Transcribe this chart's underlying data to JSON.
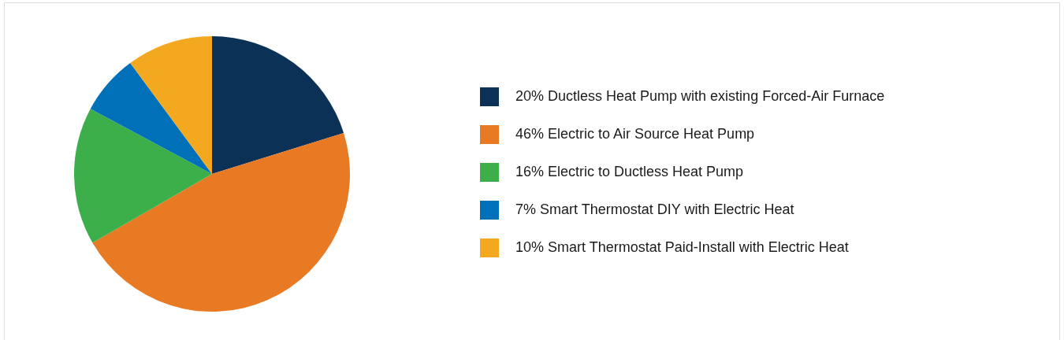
{
  "chart_data": {
    "type": "pie",
    "categories": [
      "Ductless Heat Pump with existing Forced-Air Furnace",
      "Electric to Air Source Heat Pump",
      "Electric to Ductless Heat Pump",
      "Smart Thermostat DIY with Electric Heat",
      "Smart Thermostat Paid-Install with Electric Heat"
    ],
    "values": [
      20,
      46,
      16,
      7,
      10
    ],
    "colors": [
      "#0b3256",
      "#e87a24",
      "#3caf4b",
      "#0070b8",
      "#f4a81f"
    ],
    "value_labels": [
      "20%",
      "46%",
      "16%",
      "7%",
      "10%"
    ],
    "legend": "right"
  }
}
